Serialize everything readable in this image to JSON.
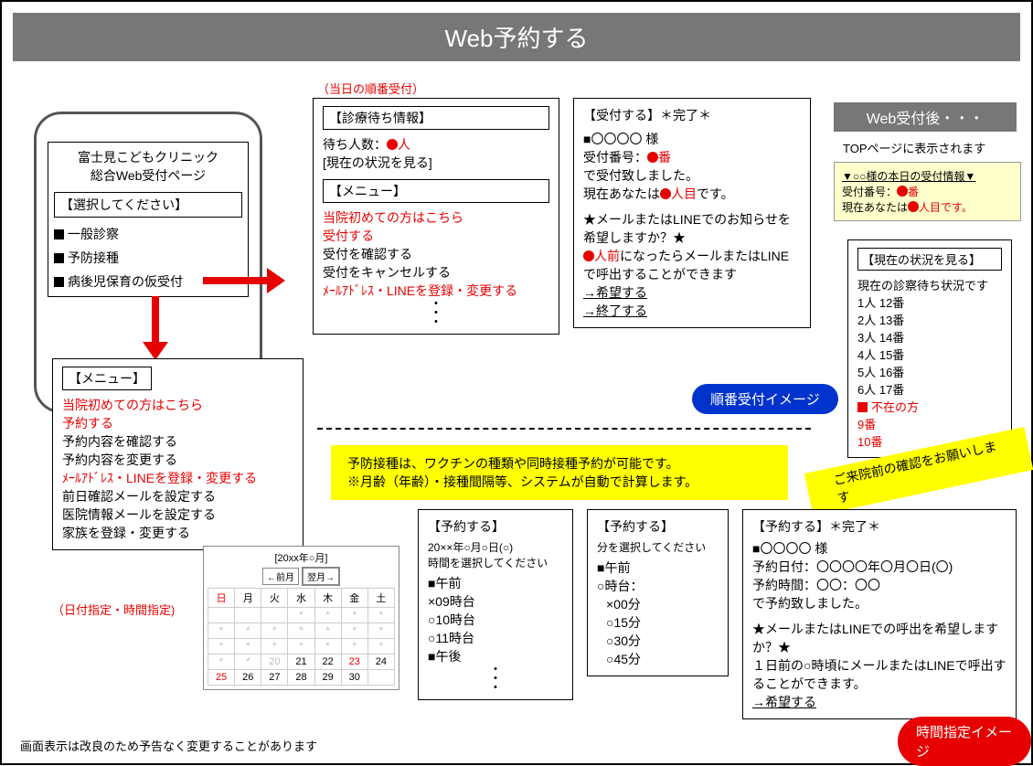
{
  "header": "Web予約する",
  "topNote": "（当日の順番受付）",
  "phone": {
    "clinic": "富士見こどもクリニック",
    "subtitle": "総合Web受付ページ",
    "selectTitle": "【選択してください】",
    "opt1": "一般診察",
    "opt2": "予防接種",
    "opt3": "病後児保育の仮受付"
  },
  "menu2": {
    "title": "【メニュー】",
    "l1": "当院初めての方はこちら",
    "l2": "予約する",
    "l3": "予約内容を確認する",
    "l4": "予約内容を変更する",
    "l5": "ﾒｰﾙｱﾄﾞﾚｽ・LINEを登録・変更する",
    "l6": "前日確認メールを設定する",
    "l7": "医院情報メールを設定する",
    "l8": "家族を登録・変更する"
  },
  "dateNote": "（日付指定・時間指定)",
  "waitCard": {
    "title": "【診療待ち情報】",
    "l1a": "待ち人数：",
    "l1b": "人",
    "l2": "[現在の状況を見る]",
    "menuTitle": "【メニュー】",
    "m1": "当院初めての方はこちら",
    "m2": "受付する",
    "m3": "受付を確認する",
    "m4": "受付をキャンセルする",
    "m5": "ﾒｰﾙｱﾄﾞﾚｽ・LINEを登録・変更する"
  },
  "accept": {
    "title": "【受付する】＊完了＊",
    "l1": "■〇〇〇〇 様",
    "l2a": "受付番号：",
    "l2b": "番",
    "l3": "で受付致しました。",
    "l4a": "現在あなたは",
    "l4b": "人目",
    "l4c": "です。",
    "n1": "★メールまたはLINEでのお知らせを希望しますか？★",
    "n2a": "人前",
    "n2b": "になったらメールまたはLINEで呼出することができます",
    "hope": "→希望する",
    "end": "→終了する"
  },
  "afterTitle": "Web受付後・・・",
  "afterNote": "TOPページに表示されます",
  "infoBox": {
    "t": "▼○○様の本日の受付情報▼",
    "l1a": "受付番号：",
    "l1b": "番",
    "l2a": "現在あなたは",
    "l2b": "人目です。"
  },
  "status": {
    "title": "【現在の状況を見る】",
    "head": "現在の診察待ち状況です",
    "r1": "1人  12番",
    "r2": "2人  13番",
    "r3": "3人  14番",
    "r4": "4人  15番",
    "r5": "5人  16番",
    "r6": "6人  17番",
    "abs": "■不在の方",
    "a1": "9番",
    "a2": "10番"
  },
  "pillBlue": "順番受付イメージ",
  "pillRed": "時間指定イメージ",
  "yellow": {
    "l1": "予防接種は、ワクチンの種類や同時接種予約が可能です。",
    "l2": "※月齢（年齢）・接種間隔等、システムが自動で計算します。"
  },
  "rot": "ご来院前の確認をお願いします",
  "timeSel": {
    "title": "【予約する】",
    "date": "20××年○月○日(○)",
    "sub": "時間を選択してください",
    "am": "■午前",
    "t1": "×09時台",
    "t2": "○10時台",
    "t3": "○11時台",
    "pm": "■午後"
  },
  "minSel": {
    "title": "【予約する】",
    "sub": "分を選択してください",
    "am": "■午前",
    "h": "○時台：",
    "m1": "×00分",
    "m2": "○15分",
    "m3": "○30分",
    "m4": "○45分"
  },
  "done": {
    "title": "【予約する】＊完了＊",
    "l1": "■〇〇〇〇 様",
    "l2": "予約日付：〇〇〇〇年〇月〇日(〇)",
    "l3": "予約時間：〇〇：〇〇",
    "l4": "で予約致しました。",
    "n1": "★メールまたはLINEでの呼出を希望しますか？★",
    "n2": "１日前の○時頃にメールまたはLINEで呼出することができます。",
    "hope": "→希望する"
  },
  "cal": {
    "title": "[20xx年○月]",
    "prev": "←前月",
    "next": "翌月→",
    "d": [
      "日",
      "月",
      "火",
      "水",
      "木",
      "金",
      "土"
    ],
    "c": [
      [
        "",
        "",
        "",
        "*",
        "*",
        "*",
        "*"
      ],
      [
        "*",
        "*",
        "*",
        "*",
        "*",
        "*",
        "*"
      ],
      [
        "*",
        "*",
        "*",
        "*",
        "*",
        "*",
        "*"
      ],
      [
        "*",
        "*",
        "20",
        "21",
        "22",
        "23",
        "24"
      ],
      [
        "25",
        "26",
        "27",
        "28",
        "29",
        "30",
        ""
      ]
    ]
  },
  "footer": "画面表示は改良のため予告なく変更することがあります",
  "colors": {
    "red": "#e60000",
    "blue": "#0033cc",
    "yellow": "#ffff00",
    "gray": "#777777"
  }
}
